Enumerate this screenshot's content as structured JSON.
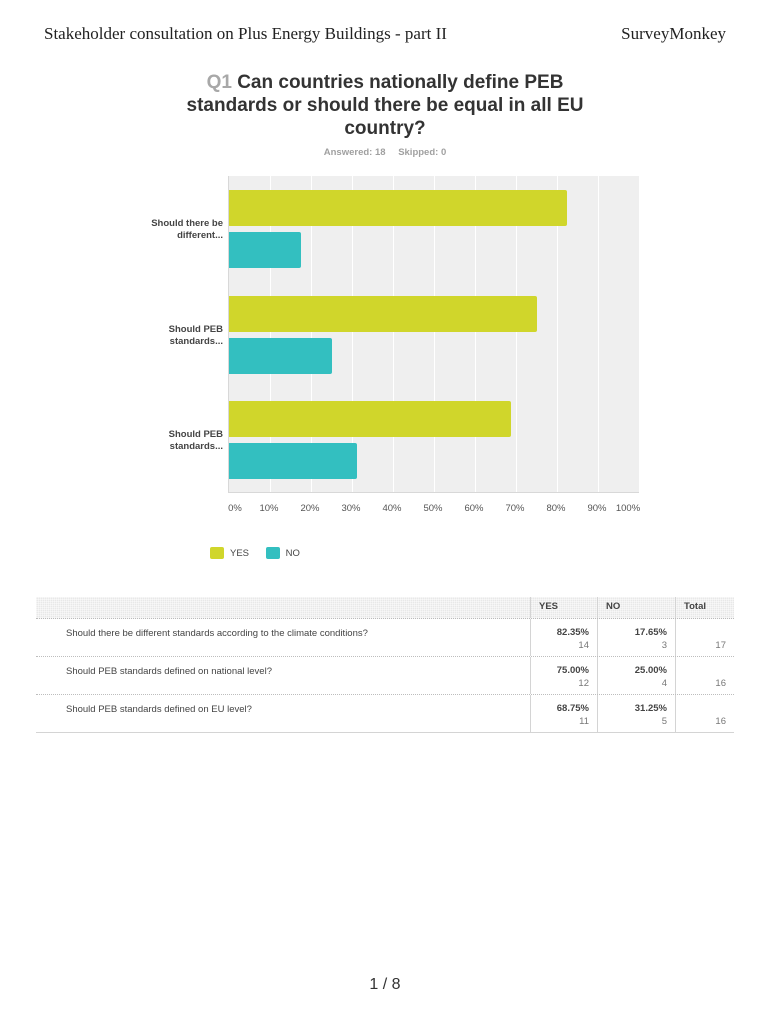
{
  "header": {
    "doc_title": "Stakeholder consultation on Plus Energy Buildings - part II",
    "brand": "SurveyMonkey"
  },
  "question": {
    "number": "Q1",
    "text": "Can countries nationally define PEB standards or should there be equal in all EU country?",
    "answered_label": "Answered: 18",
    "skipped_label": "Skipped: 0"
  },
  "colors": {
    "yes": "#d0d62b",
    "no": "#33bfc0",
    "plot_bg": "#efefef"
  },
  "chart_data": {
    "type": "bar",
    "orientation": "horizontal",
    "title": "Q1 Can countries nationally define PEB standards or should there be equal in all EU country?",
    "categories": [
      "Should there be different...",
      "Should PEB standards...",
      "Should PEB standards..."
    ],
    "series": [
      {
        "name": "YES",
        "color": "#d0d62b",
        "values": [
          82.35,
          75.0,
          68.75
        ]
      },
      {
        "name": "NO",
        "color": "#33bfc0",
        "values": [
          17.65,
          25.0,
          31.25
        ]
      }
    ],
    "xlabel": "",
    "ylabel": "",
    "xlim": [
      0,
      100
    ],
    "xticks": [
      "0%",
      "10%",
      "20%",
      "30%",
      "40%",
      "50%",
      "60%",
      "70%",
      "80%",
      "90%",
      "100%"
    ],
    "grid": true,
    "legend_position": "bottom-left"
  },
  "legend": [
    {
      "label": "YES"
    },
    {
      "label": "NO"
    }
  ],
  "table": {
    "headers": [
      "YES",
      "NO",
      "Total"
    ],
    "rows": [
      {
        "label": "Should there be different standards according to the climate conditions?",
        "yes_pct": "82.35%",
        "yes_n": "14",
        "no_pct": "17.65%",
        "no_n": "3",
        "total": "17"
      },
      {
        "label": "Should PEB standards defined on national level?",
        "yes_pct": "75.00%",
        "yes_n": "12",
        "no_pct": "25.00%",
        "no_n": "4",
        "total": "16"
      },
      {
        "label": "Should PEB standards defined on EU level?",
        "yes_pct": "68.75%",
        "yes_n": "11",
        "no_pct": "31.25%",
        "no_n": "5",
        "total": "16"
      }
    ]
  },
  "footer": {
    "page": "1 / 8"
  }
}
